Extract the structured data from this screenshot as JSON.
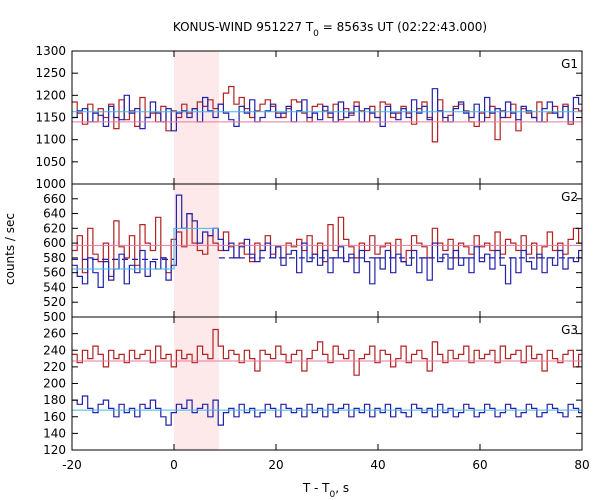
{
  "chart_data": {
    "type": "line",
    "title": {
      "prefix": "KONUS-WIND 951227 T",
      "sub": "0",
      "suffix": " = 8563s UT (02:22:43.000)"
    },
    "xlabel": {
      "prefix": "T - T",
      "sub": "0",
      "suffix": ", s"
    },
    "ylabel": "counts / sec",
    "xlim": [
      -20,
      80
    ],
    "xticks": [
      -20,
      0,
      20,
      40,
      60,
      80
    ],
    "grid": false,
    "highlight": {
      "x0": 0,
      "x1": 8.8,
      "color": "#fde8ea"
    },
    "panels": [
      {
        "label": "G1",
        "ylim": [
          1000,
          1300
        ],
        "yticks": [
          1000,
          1050,
          1100,
          1150,
          1200,
          1250,
          1300
        ],
        "show_bottom_tick_label": true,
        "series": [
          {
            "color": "#b22222",
            "kind": "histogram",
            "start": -20,
            "step": 1.024,
            "values": [
              1185,
              1160,
              1135,
              1180,
              1140,
              1170,
              1150,
              1180,
              1125,
              1190,
              1145,
              1165,
              1130,
              1195,
              1150,
              1160,
              1140,
              1175,
              1120,
              1165,
              1150,
              1180,
              1160,
              1170,
              1185,
              1175,
              1190,
              1170,
              1180,
              1205,
              1220,
              1180,
              1195,
              1170,
              1150,
              1165,
              1180,
              1190,
              1175,
              1160,
              1150,
              1170,
              1190,
              1185,
              1160,
              1140,
              1175,
              1180,
              1165,
              1150,
              1180,
              1145,
              1170,
              1155,
              1185,
              1165,
              1140,
              1175,
              1150,
              1185,
              1180,
              1150,
              1160,
              1175,
              1160,
              1135,
              1170,
              1185,
              1150,
              1095,
              1190,
              1140,
              1155,
              1175,
              1180,
              1165,
              1140,
              1130,
              1160,
              1150,
              1175,
              1100,
              1165,
              1150,
              1180,
              1120,
              1170,
              1160,
              1150,
              1185,
              1140,
              1160,
              1175,
              1150,
              1180,
              1135,
              1170,
              1165
            ]
          },
          {
            "color": "#2222aa",
            "kind": "histogram",
            "start": -20,
            "step": 1.024,
            "values": [
              1150,
              1165,
              1170,
              1140,
              1160,
              1155,
              1130,
              1175,
              1150,
              1145,
              1200,
              1160,
              1170,
              1125,
              1150,
              1185,
              1160,
              1140,
              1170,
              1120,
              1160,
              1165,
              1150,
              1170,
              1140,
              1195,
              1165,
              1150,
              1180,
              1160,
              1145,
              1130,
              1175,
              1160,
              1190,
              1140,
              1150,
              1165,
              1180,
              1150,
              1160,
              1175,
              1140,
              1165,
              1190,
              1150,
              1160,
              1145,
              1175,
              1160,
              1140,
              1185,
              1150,
              1160,
              1175,
              1140,
              1170,
              1160,
              1150,
              1130,
              1175,
              1160,
              1145,
              1170,
              1150,
              1190,
              1160,
              1175,
              1145,
              1215,
              1165,
              1150,
              1140,
              1170,
              1185,
              1160,
              1150,
              1180,
              1140,
              1195,
              1160,
              1170,
              1150,
              1185,
              1160,
              1145,
              1175,
              1165,
              1150,
              1140,
              1170,
              1185,
              1160,
              1150,
              1175,
              1140,
              1195,
              1180
            ]
          },
          {
            "color": "#e87aa0",
            "kind": "level",
            "y": 1140
          },
          {
            "color": "#3fb8e8",
            "kind": "level",
            "y": 1163
          }
        ]
      },
      {
        "label": "G2",
        "ylim": [
          500,
          680
        ],
        "yticks": [
          500,
          520,
          540,
          560,
          580,
          600,
          620,
          640,
          660
        ],
        "show_bottom_tick_label": true,
        "series": [
          {
            "color": "#b22222",
            "kind": "histogram",
            "start": -20,
            "step": 1.024,
            "values": [
              590,
              610,
              560,
              620,
              585,
              575,
              600,
              555,
              630,
              595,
              580,
              610,
              570,
              625,
              600,
              590,
              635,
              580,
              560,
              605,
              615,
              595,
              640,
              600,
              590,
              585,
              610,
              600,
              590,
              615,
              595,
              580,
              600,
              585,
              575,
              600,
              590,
              610,
              585,
              595,
              580,
              600,
              595,
              605,
              590,
              610,
              585,
              600,
              575,
              625,
              590,
              635,
              605,
              595,
              580,
              600,
              590,
              610,
              585,
              595,
              600,
              580,
              605,
              575,
              590,
              610,
              600,
              595,
              580,
              620,
              600,
              590,
              605,
              580,
              600,
              595,
              585,
              610,
              595,
              600,
              590,
              615,
              585,
              605,
              600,
              590,
              610,
              585,
              600,
              580,
              595,
              615,
              590,
              600,
              585,
              605,
              620,
              600
            ]
          },
          {
            "color": "#2222aa",
            "kind": "histogram",
            "start": -20,
            "step": 1.024,
            "values": [
              570,
              555,
              545,
              580,
              560,
              540,
              575,
              550,
              565,
              585,
              545,
              570,
              560,
              590,
              555,
              575,
              565,
              580,
              550,
              570,
              665,
              620,
              640,
              630,
              600,
              615,
              610,
              620,
              605,
              590,
              600,
              580,
              595,
              605,
              585,
              575,
              590,
              600,
              580,
              595,
              570,
              585,
              590,
              560,
              600,
              575,
              585,
              570,
              590,
              560,
              580,
              595,
              575,
              585,
              560,
              590,
              575,
              545,
              580,
              565,
              590,
              560,
              585,
              575,
              570,
              590,
              560,
              580,
              550,
              600,
              575,
              585,
              565,
              590,
              570,
              580,
              560,
              595,
              575,
              585,
              565,
              590,
              570,
              545,
              580,
              560,
              590,
              575,
              565,
              585,
              560,
              580,
              570,
              590,
              565,
              580,
              575,
              590
            ]
          },
          {
            "color": "#e87aa0",
            "kind": "level",
            "y": 597
          },
          {
            "color": "#3fb8e8",
            "kind": "segments",
            "segments": [
              {
                "x0": -20,
                "x1": 0,
                "y": 565
              },
              {
                "x0": 0,
                "x1": 8.8,
                "y": 620
              }
            ]
          },
          {
            "color": "#2222aa",
            "kind": "dashed",
            "x0": 8.8,
            "x1": 80,
            "y": 580
          },
          {
            "color": "#2222aa",
            "kind": "dashed",
            "x0": -20,
            "x1": 0,
            "y": 578
          }
        ]
      },
      {
        "label": "G3",
        "ylim": [
          120,
          280
        ],
        "yticks": [
          120,
          140,
          160,
          180,
          200,
          220,
          240,
          260
        ],
        "show_bottom_tick_label": true,
        "series": [
          {
            "color": "#b22222",
            "kind": "histogram",
            "start": -20,
            "step": 1.024,
            "values": [
              235,
              225,
              240,
              230,
              245,
              235,
              220,
              240,
              230,
              235,
              225,
              240,
              230,
              235,
              240,
              225,
              245,
              230,
              235,
              220,
              240,
              230,
              235,
              225,
              245,
              235,
              230,
              265,
              245,
              230,
              240,
              235,
              225,
              240,
              230,
              215,
              240,
              235,
              230,
              245,
              235,
              225,
              235,
              240,
              215,
              230,
              240,
              250,
              235,
              225,
              245,
              235,
              230,
              240,
              210,
              230,
              235,
              245,
              225,
              240,
              235,
              220,
              230,
              245,
              225,
              235,
              240,
              230,
              215,
              250,
              235,
              225,
              240,
              230,
              235,
              245,
              225,
              240,
              230,
              235,
              240,
              225,
              245,
              230,
              235,
              240,
              225,
              245,
              230,
              235,
              215,
              240,
              230,
              225,
              235,
              240,
              220,
              235
            ]
          },
          {
            "color": "#2222aa",
            "kind": "histogram",
            "start": -20,
            "step": 1.024,
            "values": [
              180,
              175,
              185,
              170,
              165,
              175,
              180,
              170,
              160,
              175,
              165,
              170,
              160,
              175,
              170,
              180,
              170,
              160,
              150,
              165,
              175,
              170,
              180,
              165,
              170,
              175,
              160,
              180,
              150,
              165,
              170,
              160,
              175,
              165,
              170,
              160,
              165,
              175,
              170,
              160,
              175,
              170,
              165,
              170,
              160,
              175,
              165,
              170,
              160,
              175,
              165,
              170,
              175,
              160,
              170,
              165,
              175,
              160,
              170,
              165,
              175,
              160,
              170,
              165,
              160,
              175,
              170,
              165,
              170,
              160,
              175,
              165,
              170,
              160,
              165,
              175,
              170,
              160,
              165,
              175,
              170,
              160,
              165,
              175,
              170,
              160,
              165,
              175,
              170,
              160,
              165,
              175,
              170,
              165,
              160,
              175,
              170,
              165
            ]
          },
          {
            "color": "#e87aa0",
            "kind": "level",
            "y": 227
          },
          {
            "color": "#3fb8e8",
            "kind": "level",
            "y": 168
          }
        ]
      }
    ]
  }
}
